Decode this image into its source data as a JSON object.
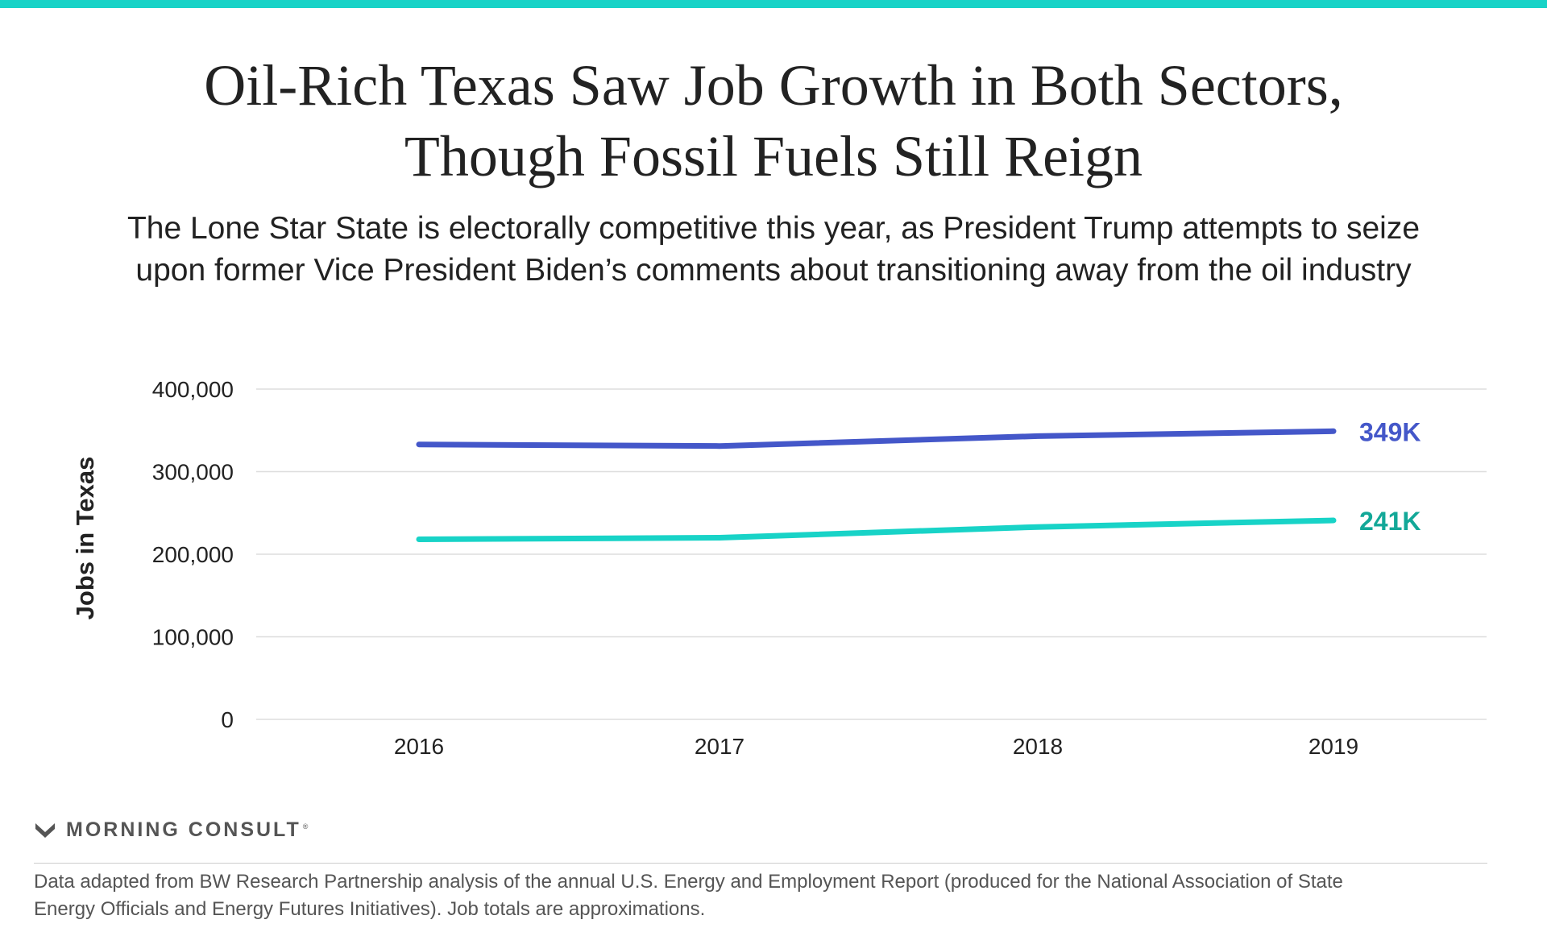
{
  "title_line1": "Oil-Rich Texas Saw Job Growth in Both Sectors,",
  "title_line2": "Though Fossil Fuels Still Reign",
  "subtitle_line1": "The Lone Star State is electorally competitive this year, as President Trump attempts to seize",
  "subtitle_line2": "upon former Vice President Biden’s comments about transitioning away from the oil industry",
  "brand": {
    "name": "MORNING CONSULT",
    "trademark": "®",
    "logo_icon": "m-logo-icon"
  },
  "footnote_line1": "Data adapted from BW Research Partnership analysis of the annual U.S. Energy and Employment Report (produced for the National Association of State",
  "footnote_line2": "Energy Officials and Energy Futures Initiatives). Job totals are approximations.",
  "colors": {
    "accent": "#18d3c7",
    "series_top": "#4457c9",
    "series_bottom": "#18d3c7",
    "label_bottom": "#13a898"
  },
  "chart_data": {
    "type": "line",
    "ylabel": "Jobs in Texas",
    "xlabel": "",
    "ylim": [
      0,
      400000
    ],
    "yticks": [
      "0",
      "100,000",
      "200,000",
      "300,000",
      "400,000"
    ],
    "ytick_values": [
      0,
      100000,
      200000,
      300000,
      400000
    ],
    "categories": [
      "2016",
      "2017",
      "2018",
      "2019"
    ],
    "grid": true,
    "series": [
      {
        "values": [
          333000,
          331000,
          343000,
          349000
        ],
        "end_label": "349K",
        "color": "#4457c9",
        "label_color": "#4457c9"
      },
      {
        "values": [
          218000,
          220000,
          233000,
          241000
        ],
        "end_label": "241K",
        "color": "#18d3c7",
        "label_color": "#13a898"
      }
    ]
  }
}
